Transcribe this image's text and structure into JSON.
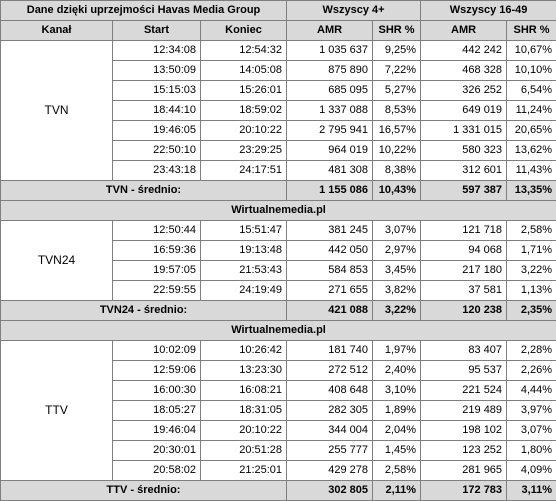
{
  "header": {
    "source": "Dane dzięki uprzejmości Havas Media Group",
    "group_all": "Wszyscy 4+",
    "group_1649": "Wszyscy 16-49",
    "col_channel": "Kanał",
    "col_start": "Start",
    "col_end": "Koniec",
    "col_amr": "AMR",
    "col_shr": "SHR %"
  },
  "separator": "Wirtualnemedia.pl",
  "channels": [
    {
      "name": "TVN",
      "rows": [
        {
          "start": "12:34:08",
          "end": "12:54:32",
          "amr_all": "1 035 637",
          "shr_all": "9,25%",
          "amr_1649": "442 242",
          "shr_1649": "10,67%"
        },
        {
          "start": "13:50:09",
          "end": "14:05:08",
          "amr_all": "875 890",
          "shr_all": "7,22%",
          "amr_1649": "468 328",
          "shr_1649": "10,10%"
        },
        {
          "start": "15:15:03",
          "end": "15:26:01",
          "amr_all": "685 095",
          "shr_all": "5,27%",
          "amr_1649": "326 252",
          "shr_1649": "6,54%"
        },
        {
          "start": "18:44:10",
          "end": "18:59:02",
          "amr_all": "1 337 088",
          "shr_all": "8,53%",
          "amr_1649": "649 019",
          "shr_1649": "11,24%"
        },
        {
          "start": "19:46:05",
          "end": "20:10:22",
          "amr_all": "2 795 941",
          "shr_all": "16,57%",
          "amr_1649": "1 331 015",
          "shr_1649": "20,65%"
        },
        {
          "start": "22:50:10",
          "end": "23:29:25",
          "amr_all": "964 019",
          "shr_all": "10,22%",
          "amr_1649": "580 323",
          "shr_1649": "13,62%"
        },
        {
          "start": "23:43:18",
          "end": "24:17:51",
          "amr_all": "481 308",
          "shr_all": "8,38%",
          "amr_1649": "312 601",
          "shr_1649": "11,43%"
        }
      ],
      "avg": {
        "label": "TVN - średnio:",
        "amr_all": "1 155 086",
        "shr_all": "10,43%",
        "amr_1649": "597 387",
        "shr_1649": "13,35%"
      }
    },
    {
      "name": "TVN24",
      "rows": [
        {
          "start": "12:50:44",
          "end": "15:51:47",
          "amr_all": "381 245",
          "shr_all": "3,07%",
          "amr_1649": "121 718",
          "shr_1649": "2,58%"
        },
        {
          "start": "16:59:36",
          "end": "19:13:48",
          "amr_all": "442 050",
          "shr_all": "2,97%",
          "amr_1649": "94 068",
          "shr_1649": "1,71%"
        },
        {
          "start": "19:57:05",
          "end": "21:53:43",
          "amr_all": "584 853",
          "shr_all": "3,45%",
          "amr_1649": "217 180",
          "shr_1649": "3,22%"
        },
        {
          "start": "22:59:55",
          "end": "24:19:49",
          "amr_all": "271 655",
          "shr_all": "3,82%",
          "amr_1649": "37 581",
          "shr_1649": "1,13%"
        }
      ],
      "avg": {
        "label": "TVN24 - średnio:",
        "amr_all": "421 088",
        "shr_all": "3,22%",
        "amr_1649": "120 238",
        "shr_1649": "2,35%"
      }
    },
    {
      "name": "TTV",
      "rows": [
        {
          "start": "10:02:09",
          "end": "10:26:42",
          "amr_all": "181 740",
          "shr_all": "1,97%",
          "amr_1649": "83 407",
          "shr_1649": "2,28%"
        },
        {
          "start": "12:59:06",
          "end": "13:23:30",
          "amr_all": "272 512",
          "shr_all": "2,40%",
          "amr_1649": "95 537",
          "shr_1649": "2,26%"
        },
        {
          "start": "16:00:30",
          "end": "16:08:21",
          "amr_all": "408 648",
          "shr_all": "3,10%",
          "amr_1649": "221 524",
          "shr_1649": "4,44%"
        },
        {
          "start": "18:05:27",
          "end": "18:31:05",
          "amr_all": "282 305",
          "shr_all": "1,89%",
          "amr_1649": "219 489",
          "shr_1649": "3,97%"
        },
        {
          "start": "19:46:04",
          "end": "20:10:22",
          "amr_all": "344 004",
          "shr_all": "2,04%",
          "amr_1649": "198 102",
          "shr_1649": "3,07%"
        },
        {
          "start": "20:30:01",
          "end": "20:51:28",
          "amr_all": "255 777",
          "shr_all": "1,45%",
          "amr_1649": "123 252",
          "shr_1649": "1,80%"
        },
        {
          "start": "20:58:02",
          "end": "21:25:01",
          "amr_all": "429 278",
          "shr_all": "2,58%",
          "amr_1649": "281 965",
          "shr_1649": "4,09%"
        }
      ],
      "avg": {
        "label": "TTV - średnio:",
        "amr_all": "302 805",
        "shr_all": "2,11%",
        "amr_1649": "172 783",
        "shr_1649": "3,11%"
      }
    }
  ]
}
